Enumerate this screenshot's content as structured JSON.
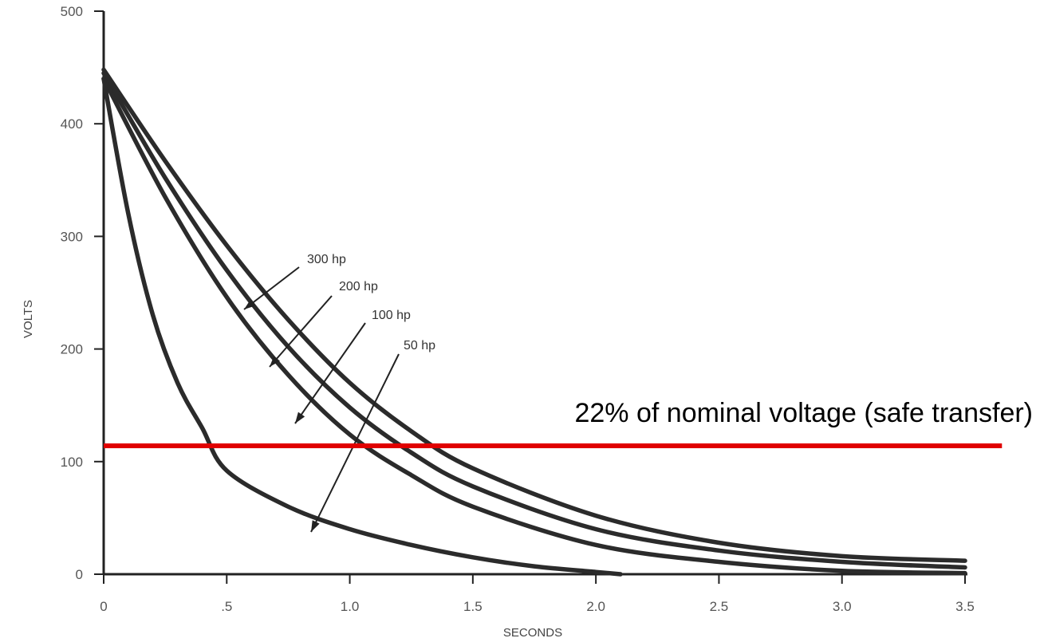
{
  "chart_data": {
    "type": "line",
    "title": "",
    "xlabel": "SECONDS",
    "ylabel": "VOLTS",
    "xlim": [
      0,
      3.5
    ],
    "ylim": [
      0,
      500
    ],
    "x_ticks": [
      0,
      0.5,
      1.0,
      1.5,
      2.0,
      2.5,
      3.0,
      3.5
    ],
    "x_tick_labels": [
      "0",
      ".5",
      "1.0",
      "1.5",
      "2.0",
      "2.5",
      "3.0",
      "3.5"
    ],
    "y_ticks": [
      0,
      100,
      200,
      300,
      400,
      500
    ],
    "y_tick_labels": [
      "0",
      "100",
      "200",
      "300",
      "400",
      "500"
    ],
    "grid": false,
    "series": [
      {
        "name": "300 hp",
        "x": [
          0,
          0.25,
          0.5,
          0.75,
          1.0,
          1.25,
          1.5,
          2.0,
          2.5,
          3.0,
          3.5
        ],
        "y": [
          448,
          367,
          292,
          226,
          170,
          127,
          94,
          52,
          28,
          16,
          12
        ]
      },
      {
        "name": "200 hp",
        "x": [
          0,
          0.25,
          0.5,
          0.75,
          1.0,
          1.25,
          1.5,
          2.0,
          2.5,
          3.0,
          3.5
        ],
        "y": [
          445,
          352,
          270,
          202,
          148,
          108,
          78,
          40,
          21,
          11,
          6
        ]
      },
      {
        "name": "100 hp",
        "x": [
          0,
          0.25,
          0.5,
          0.75,
          1.0,
          1.25,
          1.5,
          2.0,
          2.5,
          3.0,
          3.5
        ],
        "y": [
          440,
          335,
          246,
          177,
          124,
          88,
          60,
          26,
          11,
          3,
          1
        ]
      },
      {
        "name": "50 hp",
        "x": [
          0,
          0.1,
          0.2,
          0.3,
          0.4,
          0.5,
          0.75,
          1.0,
          1.25,
          1.5,
          1.75,
          2.0,
          2.1
        ],
        "y": [
          440,
          320,
          230,
          170,
          130,
          92,
          60,
          40,
          26,
          15,
          7,
          2,
          0
        ]
      }
    ],
    "annotations": [
      {
        "text": "22% of nominal voltage (safe transfer)",
        "y": 114,
        "color": "#e00000",
        "x_start": 0,
        "x_end": 3.65
      }
    ]
  }
}
